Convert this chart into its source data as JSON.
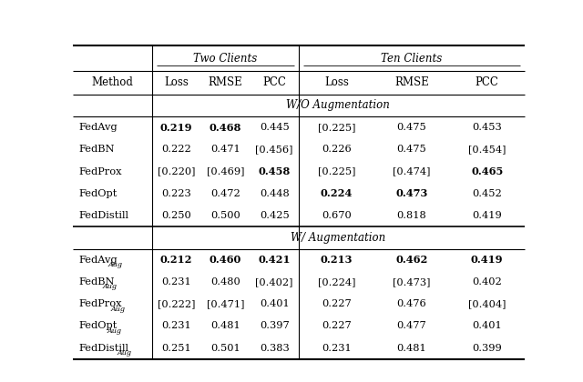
{
  "col_groups": [
    "Two Clients",
    "Ten Clients"
  ],
  "sub_cols": [
    "Loss",
    "RMSE",
    "PCC"
  ],
  "method_col": "Method",
  "section1_label": "W/O Augmentation",
  "section2_label": "W/ Augmentation",
  "rows_wo_aug": [
    {
      "method_normal": "FedAvg",
      "method_sub": "",
      "two_loss": "0.219",
      "two_loss_bold": true,
      "two_loss_bracket": false,
      "two_rmse": "0.468",
      "two_rmse_bold": true,
      "two_rmse_bracket": false,
      "two_pcc": "0.445",
      "two_pcc_bold": false,
      "two_pcc_bracket": false,
      "ten_loss": "0.225",
      "ten_loss_bold": false,
      "ten_loss_bracket": true,
      "ten_rmse": "0.475",
      "ten_rmse_bold": false,
      "ten_rmse_bracket": false,
      "ten_pcc": "0.453",
      "ten_pcc_bold": false,
      "ten_pcc_bracket": false
    },
    {
      "method_normal": "FedBN",
      "method_sub": "",
      "two_loss": "0.222",
      "two_loss_bold": false,
      "two_loss_bracket": false,
      "two_rmse": "0.471",
      "two_rmse_bold": false,
      "two_rmse_bracket": false,
      "two_pcc": "0.456",
      "two_pcc_bold": false,
      "two_pcc_bracket": true,
      "ten_loss": "0.226",
      "ten_loss_bold": false,
      "ten_loss_bracket": false,
      "ten_rmse": "0.475",
      "ten_rmse_bold": false,
      "ten_rmse_bracket": false,
      "ten_pcc": "0.454",
      "ten_pcc_bold": false,
      "ten_pcc_bracket": true
    },
    {
      "method_normal": "FedProx",
      "method_sub": "",
      "two_loss": "0.220",
      "two_loss_bold": false,
      "two_loss_bracket": true,
      "two_rmse": "0.469",
      "two_rmse_bold": false,
      "two_rmse_bracket": true,
      "two_pcc": "0.458",
      "two_pcc_bold": true,
      "two_pcc_bracket": false,
      "ten_loss": "0.225",
      "ten_loss_bold": false,
      "ten_loss_bracket": true,
      "ten_rmse": "0.474",
      "ten_rmse_bold": false,
      "ten_rmse_bracket": true,
      "ten_pcc": "0.465",
      "ten_pcc_bold": true,
      "ten_pcc_bracket": false
    },
    {
      "method_normal": "FedOpt",
      "method_sub": "",
      "two_loss": "0.223",
      "two_loss_bold": false,
      "two_loss_bracket": false,
      "two_rmse": "0.472",
      "two_rmse_bold": false,
      "two_rmse_bracket": false,
      "two_pcc": "0.448",
      "two_pcc_bold": false,
      "two_pcc_bracket": false,
      "ten_loss": "0.224",
      "ten_loss_bold": true,
      "ten_loss_bracket": false,
      "ten_rmse": "0.473",
      "ten_rmse_bold": true,
      "ten_rmse_bracket": false,
      "ten_pcc": "0.452",
      "ten_pcc_bold": false,
      "ten_pcc_bracket": false
    },
    {
      "method_normal": "FedDistill",
      "method_sub": "",
      "two_loss": "0.250",
      "two_loss_bold": false,
      "two_loss_bracket": false,
      "two_rmse": "0.500",
      "two_rmse_bold": false,
      "two_rmse_bracket": false,
      "two_pcc": "0.425",
      "two_pcc_bold": false,
      "two_pcc_bracket": false,
      "ten_loss": "0.670",
      "ten_loss_bold": false,
      "ten_loss_bracket": false,
      "ten_rmse": "0.818",
      "ten_rmse_bold": false,
      "ten_rmse_bracket": false,
      "ten_pcc": "0.419",
      "ten_pcc_bold": false,
      "ten_pcc_bracket": false
    }
  ],
  "rows_w_aug": [
    {
      "method_normal": "FedAvg",
      "method_sub": "Aug",
      "two_loss": "0.212",
      "two_loss_bold": true,
      "two_loss_bracket": false,
      "two_rmse": "0.460",
      "two_rmse_bold": true,
      "two_rmse_bracket": false,
      "two_pcc": "0.421",
      "two_pcc_bold": true,
      "two_pcc_bracket": false,
      "ten_loss": "0.213",
      "ten_loss_bold": true,
      "ten_loss_bracket": false,
      "ten_rmse": "0.462",
      "ten_rmse_bold": true,
      "ten_rmse_bracket": false,
      "ten_pcc": "0.419",
      "ten_pcc_bold": true,
      "ten_pcc_bracket": false
    },
    {
      "method_normal": "FedBN",
      "method_sub": "Aug",
      "two_loss": "0.231",
      "two_loss_bold": false,
      "two_loss_bracket": false,
      "two_rmse": "0.480",
      "two_rmse_bold": false,
      "two_rmse_bracket": false,
      "two_pcc": "0.402",
      "two_pcc_bold": false,
      "two_pcc_bracket": true,
      "ten_loss": "0.224",
      "ten_loss_bold": false,
      "ten_loss_bracket": true,
      "ten_rmse": "0.473",
      "ten_rmse_bold": false,
      "ten_rmse_bracket": true,
      "ten_pcc": "0.402",
      "ten_pcc_bold": false,
      "ten_pcc_bracket": false
    },
    {
      "method_normal": "FedProx",
      "method_sub": "Aug",
      "two_loss": "0.222",
      "two_loss_bold": false,
      "two_loss_bracket": true,
      "two_rmse": "0.471",
      "two_rmse_bold": false,
      "two_rmse_bracket": true,
      "two_pcc": "0.401",
      "two_pcc_bold": false,
      "two_pcc_bracket": false,
      "ten_loss": "0.227",
      "ten_loss_bold": false,
      "ten_loss_bracket": false,
      "ten_rmse": "0.476",
      "ten_rmse_bold": false,
      "ten_rmse_bracket": false,
      "ten_pcc": "0.404",
      "ten_pcc_bold": false,
      "ten_pcc_bracket": true
    },
    {
      "method_normal": "FedOpt",
      "method_sub": "Aug",
      "two_loss": "0.231",
      "two_loss_bold": false,
      "two_loss_bracket": false,
      "two_rmse": "0.481",
      "two_rmse_bold": false,
      "two_rmse_bracket": false,
      "two_pcc": "0.397",
      "two_pcc_bold": false,
      "two_pcc_bracket": false,
      "ten_loss": "0.227",
      "ten_loss_bold": false,
      "ten_loss_bracket": false,
      "ten_rmse": "0.477",
      "ten_rmse_bold": false,
      "ten_rmse_bracket": false,
      "ten_pcc": "0.401",
      "ten_pcc_bold": false,
      "ten_pcc_bracket": false
    },
    {
      "method_normal": "FedDistill",
      "method_sub": "Aug",
      "two_loss": "0.251",
      "two_loss_bold": false,
      "two_loss_bracket": false,
      "two_rmse": "0.501",
      "two_rmse_bold": false,
      "two_rmse_bracket": false,
      "two_pcc": "0.383",
      "two_pcc_bold": false,
      "two_pcc_bracket": false,
      "ten_loss": "0.231",
      "ten_loss_bold": false,
      "ten_loss_bracket": false,
      "ten_rmse": "0.481",
      "ten_rmse_bold": false,
      "ten_rmse_bracket": false,
      "ten_pcc": "0.399",
      "ten_pcc_bold": false,
      "ten_pcc_bracket": false
    }
  ]
}
